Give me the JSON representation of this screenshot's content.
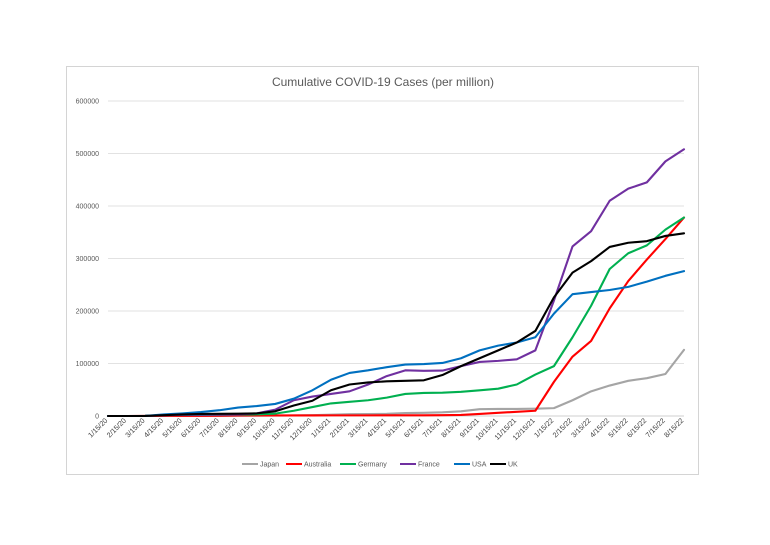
{
  "chart_data": {
    "type": "line",
    "title": "Cumulative COVID-19 Cases (per million)",
    "xlabel": "",
    "ylabel": "",
    "ylim": [
      0,
      600000
    ],
    "y_ticks": [
      "0",
      "100000",
      "200000",
      "300000",
      "400000",
      "500000",
      "600000"
    ],
    "y_tick_values": [
      0,
      100000,
      200000,
      300000,
      400000,
      500000,
      600000
    ],
    "grid": "horizontal",
    "legend_position": "bottom",
    "categories": [
      "1/15/20",
      "2/15/20",
      "3/15/20",
      "4/15/20",
      "5/15/20",
      "6/15/20",
      "7/15/20",
      "8/15/20",
      "9/15/20",
      "10/15/20",
      "11/15/20",
      "12/15/20",
      "1/15/21",
      "2/15/21",
      "3/15/21",
      "4/15/21",
      "5/15/21",
      "6/15/21",
      "7/15/21",
      "8/15/21",
      "9/15/21",
      "10/15/21",
      "11/15/21",
      "12/15/21",
      "1/15/22",
      "2/15/22",
      "3/15/22",
      "4/15/22",
      "5/15/22",
      "6/15/22",
      "7/15/22",
      "8/15/22"
    ],
    "series": [
      {
        "name": "Japan",
        "color": "#a5a5a5",
        "values": [
          0,
          0,
          50,
          100,
          130,
          140,
          200,
          400,
          600,
          700,
          1000,
          1500,
          2500,
          3500,
          3700,
          4200,
          5500,
          6000,
          7000,
          9000,
          13000,
          13500,
          13500,
          14000,
          15000,
          30000,
          47000,
          58000,
          67000,
          72000,
          80000,
          126000
        ]
      },
      {
        "name": "Australia",
        "color": "#ff0000",
        "values": [
          0,
          0,
          50,
          250,
          280,
          300,
          500,
          1000,
          1050,
          1070,
          1100,
          1150,
          1200,
          1200,
          1200,
          1250,
          1250,
          1300,
          1500,
          2000,
          4000,
          6000,
          8000,
          10000,
          65000,
          113000,
          143000,
          205000,
          257000,
          298000,
          337000,
          378000
        ]
      },
      {
        "name": "Germany",
        "color": "#00b050",
        "values": [
          0,
          0,
          100,
          1800,
          2000,
          2100,
          2400,
          2700,
          3100,
          4500,
          10000,
          17000,
          24000,
          27000,
          30000,
          35000,
          42000,
          44000,
          44500,
          46000,
          49000,
          52000,
          60000,
          79000,
          95000,
          150000,
          210000,
          280000,
          310000,
          325000,
          355000,
          378000
        ]
      },
      {
        "name": "France",
        "color": "#7030a0",
        "values": [
          0,
          0,
          100,
          1500,
          2200,
          2500,
          2800,
          3000,
          5000,
          12000,
          30000,
          37000,
          42000,
          47000,
          60000,
          76000,
          87000,
          86000,
          86500,
          95000,
          103000,
          105000,
          108000,
          125000,
          220000,
          323000,
          352000,
          410000,
          433000,
          445000,
          485000,
          508000
        ]
      },
      {
        "name": "USA",
        "color": "#0070c0",
        "values": [
          0,
          0,
          100,
          3000,
          5000,
          7500,
          11000,
          16000,
          19000,
          23000,
          33000,
          49000,
          69000,
          82000,
          87000,
          93000,
          98000,
          99000,
          101000,
          110000,
          125000,
          134000,
          140000,
          150000,
          195000,
          232000,
          236000,
          240000,
          246000,
          256000,
          267000,
          276000
        ]
      },
      {
        "name": "UK",
        "color": "#000000",
        "values": [
          0,
          0,
          100,
          1500,
          3000,
          4000,
          4200,
          4500,
          5000,
          9000,
          20000,
          29000,
          49000,
          60000,
          64000,
          66000,
          67000,
          68000,
          78000,
          95000,
          110000,
          125000,
          140000,
          162000,
          226000,
          273000,
          295000,
          322000,
          330000,
          333000,
          343000,
          348000
        ]
      }
    ]
  }
}
